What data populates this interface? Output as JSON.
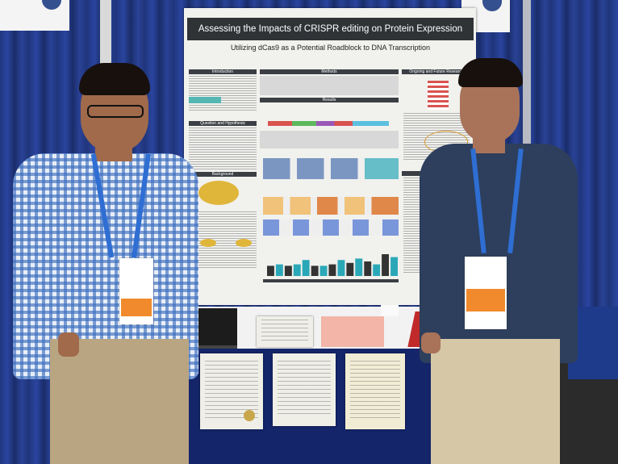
{
  "poster": {
    "title": "Assessing the Impacts of CRISPR editing on Protein Expression",
    "subtitle": "Utilizing dCas9 as a Potential Roadblock to DNA Transcription",
    "sections": {
      "introduction": "Introduction",
      "methods": "Methods",
      "ongoing": "Ongoing and Future Research",
      "results": "Results",
      "question": "Question and Hypothesis",
      "background": "Background",
      "conclusions": "Conclusions"
    },
    "bar_chart": {
      "values": [
        0.35,
        0.4,
        0.35,
        0.4,
        0.55,
        0.35,
        0.35,
        0.4,
        0.55,
        0.45,
        0.6,
        0.5,
        0.4,
        0.75,
        0.65
      ],
      "colors": [
        "#333333",
        "#2aa8b8",
        "#333333",
        "#2aa8b8",
        "#2aa8b8",
        "#333333",
        "#2aa8b8",
        "#333333",
        "#2aa8b8",
        "#333333",
        "#2aa8b8",
        "#333333",
        "#2aa8b8",
        "#333333",
        "#2aa8b8"
      ]
    }
  },
  "colors": {
    "curtain": "#2a4296",
    "tablecloth": "#14256a",
    "poster_title_bg": "#2f3336",
    "accent_teal": "#2aa8b8"
  }
}
